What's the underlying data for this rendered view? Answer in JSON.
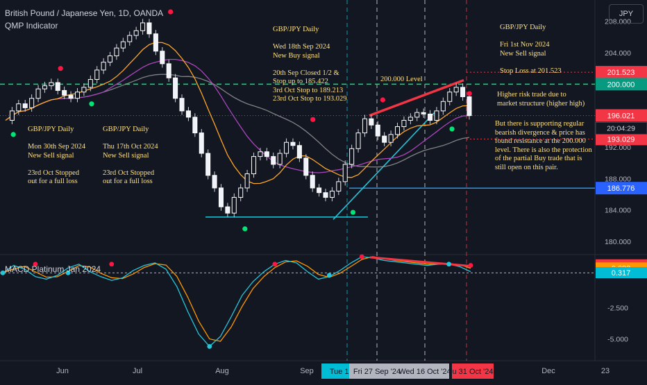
{
  "header": {
    "symbol_line": "British Pound / Japanese Yen, 1D, OANDA",
    "indicator": "QMP Indicator",
    "currency": "JPY",
    "macd_title": "MACD Platinum Jan 2024"
  },
  "annotations": {
    "a1": "GBP/JPY Daily\n\nWed 18th Sep 2024\nNew Buy signal\n\n20th Sep Closed 1/2 &\nStop up to 185.422\n3rd Oct Stop to 189.213\n23rd Oct Stop to 193.029",
    "a2": "GBP/JPY Daily\n\nFri 1st Nov 2024\nNew Sell signal\n\nStop Loss at 201.523",
    "a3": "GBP/JPY Daily\n\nMon 30th Sep 2024\nNew Sell signal\n\n23rd Oct Stopped\nout for a full loss",
    "a4": "GBP/JPY Daily\n\nThu 17th Oct 2024\nNew Sell signal\n\n23rd Oct Stopped\nout for a full loss",
    "a5": "200.000 Level",
    "a6": "Higher risk trade due to\nmarket structure (higher high)",
    "a7": "But there is supporting regular\nbearish divergence & price has\nfound resistance at the 200.000\nlevel. There is also the protection\nof the partial Buy trade that is\nstill open on this pair."
  },
  "chart_data": [
    {
      "type": "candlestick",
      "title": "British Pound / Japanese Yen, 1D, OANDA",
      "ylim": [
        178.5,
        210
      ],
      "y_ticks": [
        180,
        184,
        188,
        192,
        196,
        200,
        204,
        208
      ],
      "y_tick_labels": [
        "180.000",
        "184.000",
        "188.000",
        "192.000",
        "196.000",
        "200.000",
        "204.000",
        "208.000"
      ],
      "price_labels": [
        {
          "value": 201.523,
          "label": "201.523",
          "color": "#f23645"
        },
        {
          "value": 200.0,
          "label": "200.000",
          "color": "#089981"
        },
        {
          "value": 196.021,
          "label": "196.021",
          "color": "#f23645"
        },
        {
          "value": 193.029,
          "label": "193.029",
          "color": "#f23645"
        },
        {
          "value": 186.776,
          "label": "186.776",
          "color": "#2962ff"
        }
      ],
      "countdown": "20:04:29",
      "x_labels": [
        "Jun",
        "Jul",
        "Aug",
        "Sep",
        "Tue 17 Se",
        "Fri 27 Sep '24",
        "Wed 16 Oct '24",
        "u 31 Oct '24",
        "Dec",
        "23"
      ],
      "key_levels": [
        200.0,
        186.776,
        201.523,
        193.029,
        183.1
      ],
      "close_path": [
        195.4,
        196.6,
        197.5,
        197.0,
        198.2,
        199.4,
        199.8,
        200.2,
        199.2,
        198.6,
        198.2,
        199.0,
        199.6,
        200.6,
        201.8,
        202.8,
        203.6,
        204.6,
        205.4,
        206.2,
        206.8,
        207.8,
        206.4,
        204.2,
        202.6,
        200.8,
        198.2,
        196.6,
        195.8,
        193.8,
        191.2,
        188.4,
        186.8,
        184.4,
        183.6,
        185.6,
        186.8,
        188.6,
        190.8,
        191.4,
        190.8,
        189.8,
        191.2,
        192.6,
        192.2,
        190.6,
        188.4,
        186.8,
        186.2,
        185.6,
        186.4,
        187.6,
        189.8,
        191.8,
        193.8,
        195.6,
        194.8,
        193.4,
        192.6,
        193.6,
        194.6,
        195.4,
        195.8,
        196.4,
        196.2,
        195.4,
        196.6,
        197.8,
        199.0,
        199.6,
        198.4,
        196.0
      ],
      "signals": [
        {
          "kind": "sell",
          "x": 0.255,
          "y": 209.2
        },
        {
          "kind": "sell",
          "x": 0.085,
          "y": 202.0
        },
        {
          "kind": "buy",
          "x": 0.133,
          "y": 197.5
        },
        {
          "kind": "buy",
          "x": 0.012,
          "y": 193.6
        },
        {
          "kind": "buy",
          "x": 0.37,
          "y": 181.6
        },
        {
          "kind": "sell",
          "x": 0.475,
          "y": 195.5
        },
        {
          "kind": "buy",
          "x": 0.537,
          "y": 183.7
        },
        {
          "kind": "sell",
          "x": 0.583,
          "y": 198.0
        },
        {
          "kind": "buy",
          "x": 0.69,
          "y": 194.3
        },
        {
          "kind": "sell",
          "x": 0.717,
          "y": 198.8
        }
      ]
    },
    {
      "type": "line",
      "title": "MACD Platinum Jan 2024",
      "ylim": [
        -6.3,
        1.6
      ],
      "y_tick_labels": [
        "-2.500",
        "-5.000"
      ],
      "value_labels": [
        {
          "value": 0.945,
          "label": "0.945",
          "color": "#f23645"
        },
        {
          "value": 0.692,
          "label": "0.692",
          "color": "#ff9800"
        },
        {
          "value": 0.317,
          "label": "0.317",
          "color": "#00bcd4"
        }
      ]
    }
  ]
}
